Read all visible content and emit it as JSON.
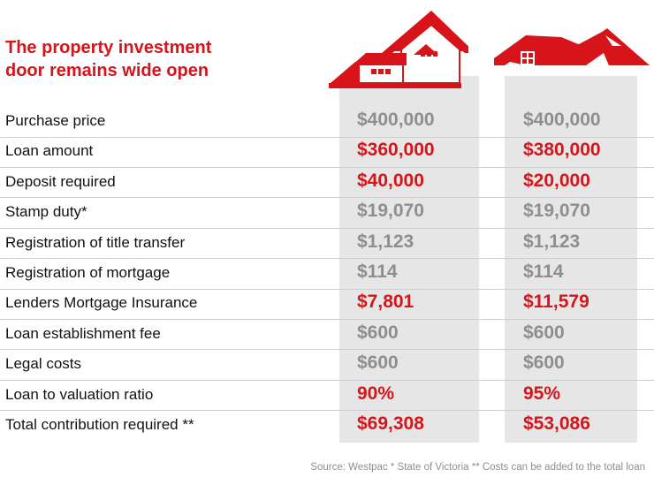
{
  "title_line1": "The property investment",
  "title_line2": "door remains wide open",
  "source": "Source: Westpac * State of Victoria ** Costs can be added to the total loan",
  "colors": {
    "accent_red": "#d7141a",
    "gray_value": "#8e8e8e",
    "column_bg": "#e6e6e6"
  },
  "icons": [
    "house-with-garage-icon",
    "house-roof-icon"
  ],
  "rows": [
    {
      "label": "Purchase price",
      "v1": "$400,000",
      "v2": "$400,000",
      "highlight": false
    },
    {
      "label": "Loan amount",
      "v1": "$360,000",
      "v2": "$380,000",
      "highlight": true
    },
    {
      "label": "Deposit required",
      "v1": "$40,000",
      "v2": "$20,000",
      "highlight": true
    },
    {
      "label": "Stamp duty*",
      "v1": "$19,070",
      "v2": "$19,070",
      "highlight": false
    },
    {
      "label": "Registration of title transfer",
      "v1": "$1,123",
      "v2": "$1,123",
      "highlight": false
    },
    {
      "label": "Registration of mortgage",
      "v1": "$114",
      "v2": "$114",
      "highlight": false
    },
    {
      "label": "Lenders Mortgage Insurance",
      "v1": "$7,801",
      "v2": "$11,579",
      "highlight": true
    },
    {
      "label": "Loan establishment fee",
      "v1": "$600",
      "v2": "$600",
      "highlight": false
    },
    {
      "label": "Legal costs",
      "v1": "$600",
      "v2": "$600",
      "highlight": false
    },
    {
      "label": "Loan to valuation ratio",
      "v1": "90%",
      "v2": "95%",
      "highlight": true
    },
    {
      "label": "Total contribution required **",
      "v1": "$69,308",
      "v2": "$53,086",
      "highlight": true
    }
  ]
}
